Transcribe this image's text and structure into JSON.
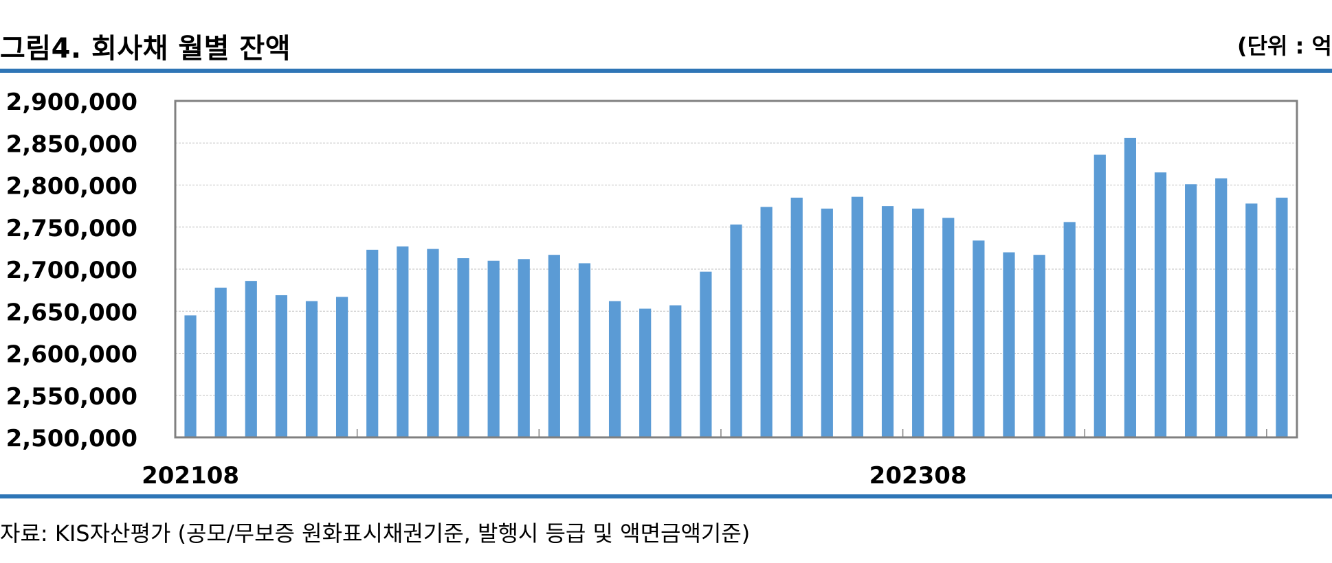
{
  "header": {
    "title": "그림4. 회사채 월별 잔액",
    "unit": "(단위 : 억"
  },
  "footer": {
    "source": "자료: KIS자산평가 (공모/무보증 원화표시채권기준, 발행시 등급 및 액면금액기준)"
  },
  "colors": {
    "bar": "#5B9BD5",
    "rule": "#2E75B6",
    "frame": "#808080",
    "grid": "#BFBFBF"
  },
  "chart_data": {
    "type": "bar",
    "title": "그림4. 회사채 월별 잔액",
    "xlabel": "",
    "ylabel": "",
    "ylim": [
      2500000,
      2900000
    ],
    "yticks": [
      2500000,
      2550000,
      2600000,
      2650000,
      2700000,
      2750000,
      2800000,
      2850000,
      2900000
    ],
    "ytick_labels": [
      "2,500,000",
      "2,550,000",
      "2,600,000",
      "2,650,000",
      "2,700,000",
      "2,750,000",
      "2,800,000",
      "2,850,000",
      "2,900,000"
    ],
    "xtick_labels": [
      {
        "index": 0,
        "label": "202108"
      },
      {
        "index": 24,
        "label": "202308"
      }
    ],
    "grid": true,
    "categories": [
      "202108",
      "202109",
      "202110",
      "202111",
      "202112",
      "202201",
      "202202",
      "202203",
      "202204",
      "202205",
      "202206",
      "202207",
      "202208",
      "202209",
      "202210",
      "202211",
      "202212",
      "202301",
      "202302",
      "202303",
      "202304",
      "202305",
      "202306",
      "202307",
      "202308",
      "202309",
      "202310",
      "202311",
      "202312",
      "202401",
      "202402",
      "202403",
      "202404",
      "202405",
      "202406",
      "202407",
      "202408"
    ],
    "values": [
      2645000,
      2678000,
      2686000,
      2669000,
      2662000,
      2667000,
      2723000,
      2727000,
      2724000,
      2713000,
      2710000,
      2712000,
      2717000,
      2707000,
      2662000,
      2653000,
      2657000,
      2697000,
      2753000,
      2774000,
      2785000,
      2772000,
      2786000,
      2775000,
      2772000,
      2761000,
      2734000,
      2720000,
      2717000,
      2756000,
      2836000,
      2856000,
      2815000,
      2801000,
      2808000,
      2778000,
      2785000
    ]
  }
}
